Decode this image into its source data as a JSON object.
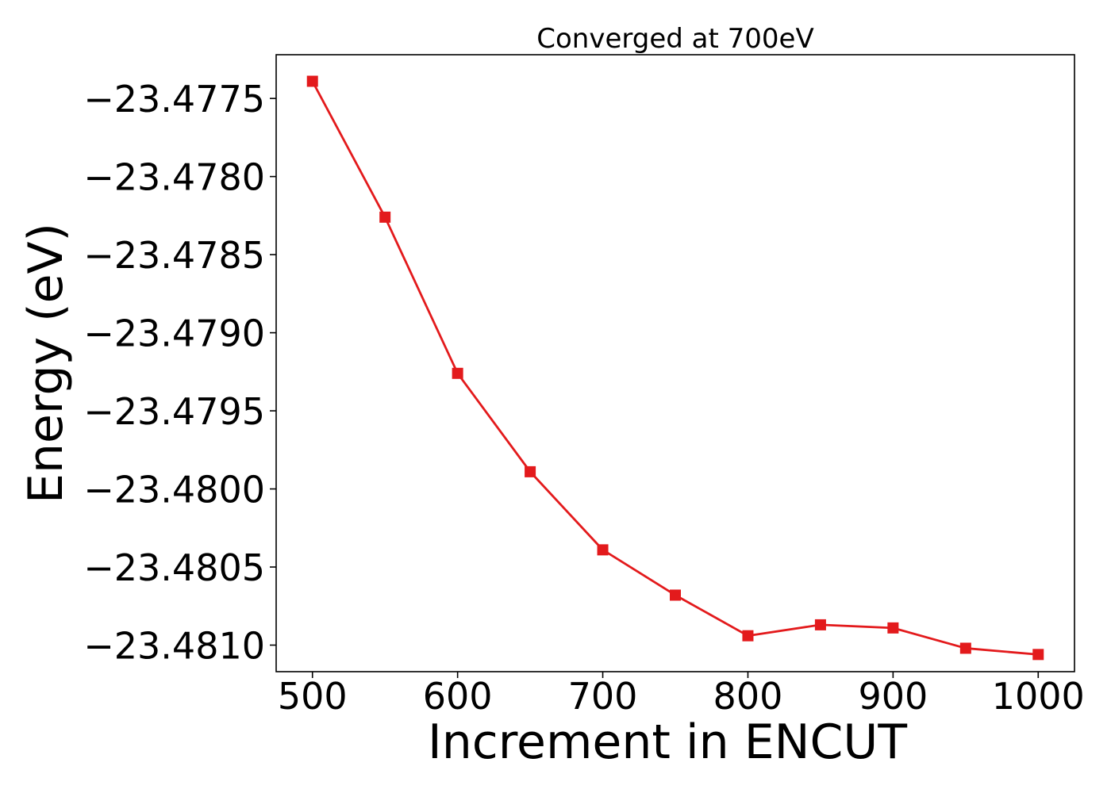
{
  "chart_data": {
    "type": "line",
    "title": "Converged at 700eV",
    "xlabel": "Increment in ENCUT",
    "ylabel": "Energy (eV)",
    "x": [
      500,
      550,
      600,
      650,
      700,
      750,
      800,
      850,
      900,
      950,
      1000
    ],
    "series": [
      {
        "values": [
          -23.47739,
          -23.47826,
          -23.47926,
          -23.47989,
          -23.48039,
          -23.48068,
          -23.48094,
          -23.48087,
          -23.48089,
          -23.48102,
          -23.48106
        ],
        "color": "#e31a1c",
        "marker": "square"
      }
    ],
    "xlim": [
      475,
      1025
    ],
    "ylim": [
      -23.48117,
      -23.47722
    ],
    "xticks": [
      500,
      600,
      700,
      800,
      900,
      1000
    ],
    "xtick_labels": [
      "500",
      "600",
      "700",
      "800",
      "900",
      "1000"
    ],
    "yticks": [
      -23.4775,
      -23.478,
      -23.4785,
      -23.479,
      -23.4795,
      -23.48,
      -23.4805,
      -23.481
    ],
    "ytick_labels": [
      "−23.4775",
      "−23.4780",
      "−23.4785",
      "−23.4790",
      "−23.4795",
      "−23.4800",
      "−23.4805",
      "−23.4810"
    ],
    "grid": false,
    "legend": "none"
  }
}
